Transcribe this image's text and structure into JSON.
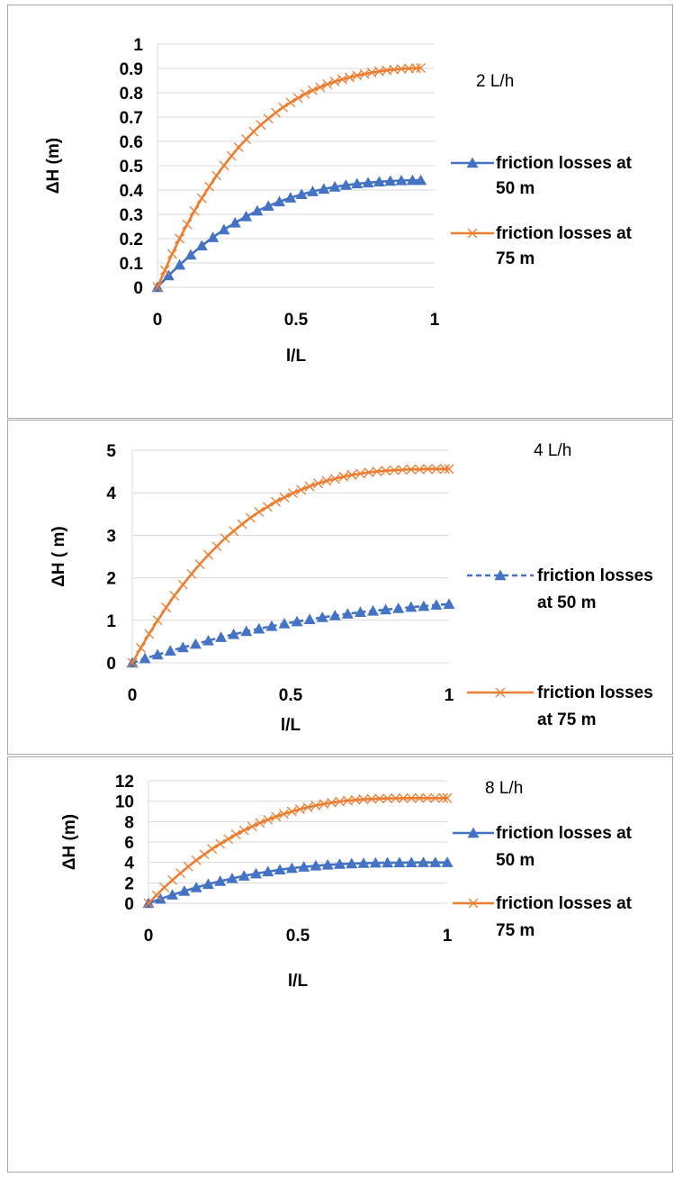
{
  "chart_data": [
    {
      "type": "line",
      "annotation": "2 L/h",
      "xlabel": "l/L",
      "ylabel": "ΔH  (m)",
      "xlim": [
        0,
        1
      ],
      "ylim": [
        0,
        1
      ],
      "x_ticks": [
        "0",
        "0.5",
        "1"
      ],
      "y_ticks": [
        "0",
        "0.1",
        "0.2",
        "0.3",
        "0.4",
        "0.5",
        "0.6",
        "0.7",
        "0.8",
        "0.9",
        "1"
      ],
      "legend_position": "right",
      "series": [
        {
          "name": "friction losses at 50 m",
          "legend_lines": [
            "friction losses at",
            "50 m"
          ],
          "color": "#4472c4",
          "marker": "triangle",
          "line": "solid",
          "x": [
            0,
            0.04,
            0.08,
            0.12,
            0.16,
            0.2,
            0.24,
            0.28,
            0.32,
            0.36,
            0.4,
            0.44,
            0.48,
            0.52,
            0.56,
            0.6,
            0.64,
            0.68,
            0.72,
            0.76,
            0.8,
            0.84,
            0.88,
            0.92,
            0.95
          ],
          "y": [
            0,
            0.048,
            0.092,
            0.133,
            0.171,
            0.205,
            0.237,
            0.265,
            0.291,
            0.314,
            0.334,
            0.352,
            0.368,
            0.382,
            0.394,
            0.404,
            0.413,
            0.42,
            0.426,
            0.43,
            0.434,
            0.437,
            0.439,
            0.44,
            0.44
          ]
        },
        {
          "name": "friction losses at 75 m",
          "legend_lines": [
            "friction losses at",
            "75 m"
          ],
          "color": "#ed7d31",
          "marker": "x",
          "line": "solid",
          "x": [
            0,
            0.027,
            0.053,
            0.08,
            0.107,
            0.133,
            0.16,
            0.187,
            0.213,
            0.24,
            0.267,
            0.293,
            0.32,
            0.347,
            0.373,
            0.4,
            0.427,
            0.453,
            0.48,
            0.507,
            0.533,
            0.56,
            0.587,
            0.613,
            0.64,
            0.667,
            0.693,
            0.72,
            0.747,
            0.773,
            0.8,
            0.827,
            0.853,
            0.88,
            0.907,
            0.933,
            0.95
          ],
          "y": [
            0,
            0.07,
            0.137,
            0.2,
            0.259,
            0.314,
            0.366,
            0.414,
            0.459,
            0.501,
            0.54,
            0.576,
            0.609,
            0.64,
            0.668,
            0.694,
            0.718,
            0.74,
            0.76,
            0.778,
            0.795,
            0.81,
            0.823,
            0.835,
            0.846,
            0.855,
            0.863,
            0.871,
            0.877,
            0.883,
            0.888,
            0.892,
            0.895,
            0.898,
            0.9,
            0.901,
            0.902
          ]
        }
      ]
    },
    {
      "type": "line",
      "annotation": "4 L/h",
      "xlabel": "l/L",
      "ylabel": "ΔH ( m)",
      "xlim": [
        0,
        1
      ],
      "ylim": [
        0,
        5
      ],
      "x_ticks": [
        "0",
        "0.5",
        "1"
      ],
      "y_ticks": [
        "0",
        "1",
        "2",
        "3",
        "4",
        "5"
      ],
      "legend_position": "right",
      "series": [
        {
          "name": "friction losses at 50 m",
          "legend_lines": [
            "friction losses",
            "at 50 m"
          ],
          "color": "#4472c4",
          "marker": "triangle",
          "line": "dashed",
          "x": [
            0,
            0.04,
            0.08,
            0.12,
            0.16,
            0.2,
            0.24,
            0.28,
            0.32,
            0.36,
            0.4,
            0.44,
            0.48,
            0.52,
            0.56,
            0.6,
            0.64,
            0.68,
            0.72,
            0.76,
            0.8,
            0.84,
            0.88,
            0.92,
            0.96,
            1
          ],
          "y": [
            0,
            0.1,
            0.19,
            0.28,
            0.36,
            0.44,
            0.52,
            0.6,
            0.67,
            0.74,
            0.8,
            0.86,
            0.92,
            0.97,
            1.02,
            1.07,
            1.11,
            1.15,
            1.19,
            1.22,
            1.25,
            1.28,
            1.31,
            1.33,
            1.36,
            1.38
          ]
        },
        {
          "name": "friction losses at 75 m",
          "legend_lines": [
            "friction losses",
            "at 75 m"
          ],
          "color": "#ed7d31",
          "marker": "x",
          "line": "solid",
          "x": [
            0,
            0.027,
            0.053,
            0.08,
            0.107,
            0.133,
            0.16,
            0.187,
            0.213,
            0.24,
            0.267,
            0.293,
            0.32,
            0.347,
            0.373,
            0.4,
            0.427,
            0.453,
            0.48,
            0.507,
            0.533,
            0.56,
            0.587,
            0.613,
            0.64,
            0.667,
            0.693,
            0.72,
            0.747,
            0.773,
            0.8,
            0.827,
            0.853,
            0.88,
            0.907,
            0.933,
            0.96,
            0.987,
            1
          ],
          "y": [
            0,
            0.35,
            0.68,
            1.0,
            1.3,
            1.58,
            1.84,
            2.09,
            2.32,
            2.54,
            2.74,
            2.93,
            3.1,
            3.26,
            3.41,
            3.55,
            3.67,
            3.79,
            3.89,
            3.99,
            4.07,
            4.15,
            4.22,
            4.28,
            4.33,
            4.38,
            4.42,
            4.45,
            4.48,
            4.5,
            4.52,
            4.53,
            4.54,
            4.55,
            4.55,
            4.56,
            4.56,
            4.56,
            4.56
          ]
        }
      ]
    },
    {
      "type": "line",
      "annotation": "8 L/h",
      "xlabel": "l/L",
      "ylabel": "ΔH (m)",
      "xlim": [
        0,
        1
      ],
      "ylim": [
        0,
        12
      ],
      "x_ticks": [
        "0",
        "0.5",
        "1"
      ],
      "y_ticks": [
        "0",
        "2",
        "4",
        "6",
        "8",
        "10",
        "12"
      ],
      "legend_position": "right",
      "series": [
        {
          "name": "friction losses at 50 m",
          "legend_lines": [
            "friction losses at",
            "50 m"
          ],
          "color": "#4472c4",
          "marker": "triangle",
          "line": "solid",
          "x": [
            0,
            0.04,
            0.08,
            0.12,
            0.16,
            0.2,
            0.24,
            0.28,
            0.32,
            0.36,
            0.4,
            0.44,
            0.48,
            0.52,
            0.56,
            0.6,
            0.64,
            0.68,
            0.72,
            0.76,
            0.8,
            0.84,
            0.88,
            0.92,
            0.96,
            1
          ],
          "y": [
            0,
            0.42,
            0.82,
            1.19,
            1.54,
            1.86,
            2.16,
            2.43,
            2.68,
            2.9,
            3.1,
            3.28,
            3.43,
            3.56,
            3.67,
            3.76,
            3.83,
            3.88,
            3.92,
            3.95,
            3.97,
            3.98,
            3.99,
            4.0,
            4.0,
            4.0
          ]
        },
        {
          "name": "friction losses at 75 m",
          "legend_lines": [
            "friction losses at",
            "75 m"
          ],
          "color": "#ed7d31",
          "marker": "x",
          "line": "solid",
          "x": [
            0,
            0.027,
            0.053,
            0.08,
            0.107,
            0.133,
            0.16,
            0.187,
            0.213,
            0.24,
            0.267,
            0.293,
            0.32,
            0.347,
            0.373,
            0.4,
            0.427,
            0.453,
            0.48,
            0.507,
            0.533,
            0.56,
            0.587,
            0.613,
            0.64,
            0.667,
            0.693,
            0.72,
            0.747,
            0.773,
            0.8,
            0.827,
            0.853,
            0.88,
            0.907,
            0.933,
            0.96,
            0.987,
            1
          ],
          "y": [
            0,
            0.79,
            1.55,
            2.27,
            2.95,
            3.6,
            4.21,
            4.78,
            5.32,
            5.82,
            6.29,
            6.73,
            7.14,
            7.52,
            7.87,
            8.19,
            8.48,
            8.75,
            8.99,
            9.21,
            9.4,
            9.57,
            9.72,
            9.85,
            9.96,
            10.05,
            10.12,
            10.18,
            10.22,
            10.25,
            10.27,
            10.28,
            10.29,
            10.3,
            10.3,
            10.3,
            10.3,
            10.3,
            10.3
          ]
        }
      ]
    }
  ]
}
